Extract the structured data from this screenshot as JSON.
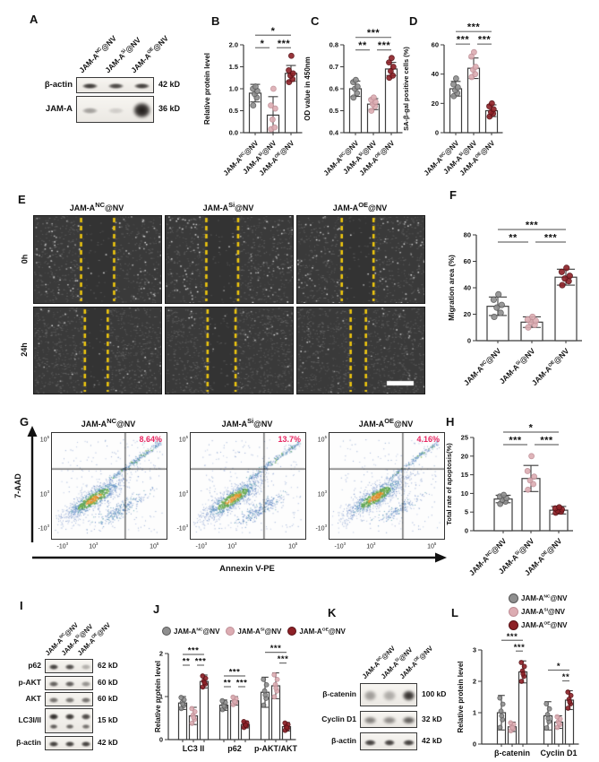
{
  "groups": [
    {
      "prefix": "JAM-A",
      "sup": "NC",
      "suffix": "@NV",
      "fill": "#8f8f8f",
      "stroke": "#565656"
    },
    {
      "prefix": "JAM-A",
      "sup": "Si",
      "suffix": "@NV",
      "fill": "#dcacb2",
      "stroke": "#bf8e96"
    },
    {
      "prefix": "JAM-A",
      "sup": "OE",
      "suffix": "@NV",
      "fill": "#8d2026",
      "stroke": "#571015"
    }
  ],
  "panels": {
    "A": {
      "label": "A",
      "rows": [
        {
          "name": "β-actin",
          "kd": "42 kD",
          "intensities": [
            0.88,
            0.82,
            0.86
          ]
        },
        {
          "name": "JAM-A",
          "kd": "36 kD",
          "intensities": [
            0.38,
            0.16,
            1.0
          ]
        }
      ]
    },
    "B": {
      "label": "B"
    },
    "C": {
      "label": "C"
    },
    "D": {
      "label": "D"
    },
    "E": {
      "label": "E",
      "row_labels": [
        "0h",
        "24h"
      ],
      "line_color": "#eec60e",
      "gaps": [
        [
          [
            0.37,
            0.63
          ],
          [
            0.32,
            0.57
          ],
          [
            0.35,
            0.6
          ]
        ],
        [
          [
            0.4,
            0.58
          ],
          [
            0.33,
            0.55
          ],
          [
            0.42,
            0.54
          ]
        ]
      ]
    },
    "F": {
      "label": "F"
    },
    "G": {
      "label": "G",
      "ylabel": "7-AAD",
      "xlabel": "Annexin V-PE",
      "yticks": [
        "10^5",
        "10^3",
        "-10^3"
      ],
      "xticks": [
        "-10^3",
        "10^3",
        "10^5"
      ],
      "percent_color": "#e82762",
      "plots": [
        {
          "group": 0,
          "percent": "8.64%"
        },
        {
          "group": 1,
          "percent": "13.7%"
        },
        {
          "group": 2,
          "percent": "4.16%"
        }
      ]
    },
    "H": {
      "label": "H"
    },
    "I": {
      "label": "I",
      "rows": [
        {
          "name": "p62",
          "kd": "62 kD",
          "intensities": [
            0.85,
            0.8,
            0.3
          ]
        },
        {
          "name": "p-AKT",
          "kd": "60 kD",
          "intensities": [
            0.7,
            0.72,
            0.45
          ]
        },
        {
          "name": "AKT",
          "kd": "60 kD",
          "intensities": [
            0.62,
            0.6,
            0.62
          ]
        },
        {
          "name": "LC3I/II",
          "kd": "15 kD",
          "intensities": [
            0.95,
            0.9,
            0.82
          ],
          "double": true
        },
        {
          "name": "β-actin",
          "kd": "42 kD",
          "intensities": [
            0.86,
            0.86,
            0.86
          ]
        }
      ]
    },
    "J": {
      "label": "J"
    },
    "K": {
      "label": "K",
      "rows": [
        {
          "name": "β-catenin",
          "kd": "100 kD",
          "intensities": [
            0.4,
            0.33,
            0.92
          ],
          "smudge": true
        },
        {
          "name": "Cyclin D1",
          "kd": "32 kD",
          "intensities": [
            0.55,
            0.5,
            0.72
          ],
          "smudge": true
        },
        {
          "name": "β-actin",
          "kd": "42 kD",
          "intensities": [
            0.85,
            0.85,
            0.85
          ]
        }
      ]
    },
    "L": {
      "label": "L"
    }
  },
  "chart_data": [
    {
      "id": "B",
      "type": "bar",
      "ylabel": "Relative protein level",
      "ylim": [
        0,
        2
      ],
      "yticks": [
        0,
        0.5,
        1,
        1.5,
        2
      ],
      "ytick_decimals": 1,
      "values": [
        0.9,
        0.4,
        1.35
      ],
      "errors": [
        0.2,
        0.42,
        0.18
      ],
      "n_points": 6,
      "points": [
        [
          0.62,
          0.8,
          0.88,
          0.95,
          1.0,
          1.05
        ],
        [
          0.08,
          0.12,
          0.3,
          0.55,
          0.62,
          1.0
        ],
        [
          1.15,
          1.22,
          1.3,
          1.35,
          1.42,
          1.75
        ]
      ],
      "sig": [
        {
          "from": 0,
          "to": 2,
          "row": 0,
          "label": "*"
        },
        {
          "from": 0,
          "to": 1,
          "row": 1,
          "label": "*"
        },
        {
          "from": 1,
          "to": 2,
          "row": 1,
          "label": "***"
        }
      ]
    },
    {
      "id": "C",
      "type": "bar",
      "ylabel": "OD value in 450nm",
      "ylim": [
        0.4,
        0.8
      ],
      "yticks": [
        0.4,
        0.5,
        0.6,
        0.7,
        0.8
      ],
      "ytick_decimals": 1,
      "values": [
        0.6,
        0.53,
        0.69
      ],
      "errors": [
        0.035,
        0.025,
        0.03
      ],
      "n_points": 6,
      "points": [
        [
          0.56,
          0.58,
          0.6,
          0.61,
          0.63,
          0.64
        ],
        [
          0.5,
          0.52,
          0.53,
          0.54,
          0.55,
          0.56
        ],
        [
          0.65,
          0.66,
          0.68,
          0.7,
          0.72,
          0.74
        ]
      ],
      "sig": [
        {
          "from": 0,
          "to": 2,
          "row": 0,
          "label": "***"
        },
        {
          "from": 0,
          "to": 1,
          "row": 1,
          "label": "**"
        },
        {
          "from": 1,
          "to": 2,
          "row": 1,
          "label": "***"
        }
      ]
    },
    {
      "id": "D",
      "type": "bar",
      "ylabel": "SA-β-gal positive cells (%)",
      "ylim": [
        0,
        60
      ],
      "yticks": [
        0,
        20,
        40,
        60
      ],
      "ytick_decimals": 0,
      "values": [
        30,
        44,
        15
      ],
      "errors": [
        5,
        7,
        4
      ],
      "n_points": 6,
      "points": [
        [
          25,
          27,
          29,
          31,
          33,
          37
        ],
        [
          38,
          40,
          43,
          45,
          52,
          55
        ],
        [
          11,
          13,
          14,
          16,
          18,
          20
        ]
      ],
      "sig": [
        {
          "from": 0,
          "to": 2,
          "row": 0,
          "label": "***"
        },
        {
          "from": 0,
          "to": 1,
          "row": 1,
          "label": "***"
        },
        {
          "from": 1,
          "to": 2,
          "row": 1,
          "label": "***"
        }
      ]
    },
    {
      "id": "F",
      "type": "bar",
      "ylabel": "Migration area (%)",
      "ylim": [
        0,
        80
      ],
      "yticks": [
        0,
        20,
        40,
        60,
        80
      ],
      "ytick_decimals": 0,
      "values": [
        26,
        14,
        48
      ],
      "errors": [
        7,
        4,
        6
      ],
      "n_points": 6,
      "points": [
        [
          18,
          21,
          25,
          27,
          31,
          35
        ],
        [
          10,
          12,
          14,
          15,
          16,
          18
        ],
        [
          42,
          45,
          47,
          49,
          52,
          55
        ]
      ],
      "sig": [
        {
          "from": 0,
          "to": 2,
          "row": 0,
          "label": "***"
        },
        {
          "from": 0,
          "to": 1,
          "row": 1,
          "label": "**"
        },
        {
          "from": 1,
          "to": 2,
          "row": 1,
          "label": "***"
        }
      ]
    },
    {
      "id": "H",
      "type": "bar",
      "ylabel": "Total rate of apoptosis(%)",
      "ylim": [
        0,
        25
      ],
      "yticks": [
        0,
        5,
        10,
        15,
        20,
        25
      ],
      "ytick_decimals": 0,
      "values": [
        8.5,
        14,
        5.5
      ],
      "errors": [
        1,
        3.5,
        1
      ],
      "n_points": 6,
      "points": [
        [
          7.2,
          7.8,
          8.3,
          8.7,
          9.2,
          9.6
        ],
        [
          11,
          12.5,
          13.5,
          14.5,
          16,
          20
        ],
        [
          4.8,
          5.1,
          5.4,
          5.7,
          6,
          6.3
        ]
      ],
      "sig": [
        {
          "from": 0,
          "to": 2,
          "row": 0,
          "label": "*"
        },
        {
          "from": 0,
          "to": 1,
          "row": 1,
          "label": "***"
        },
        {
          "from": 1,
          "to": 2,
          "row": 1,
          "label": "***"
        }
      ]
    },
    {
      "id": "J",
      "type": "grouped-bar",
      "ylabel": "Relative protein level",
      "ylim": [
        0,
        2
      ],
      "yticks": [
        0,
        1,
        2
      ],
      "ytick_decimals": 0,
      "categories": [
        "LC3 II",
        "p62",
        "p-AKT/AKT"
      ],
      "n_points": 6,
      "series": [
        {
          "group": 0,
          "values": [
            0.85,
            0.8,
            1.1
          ],
          "errors": [
            0.15,
            0.12,
            0.35
          ]
        },
        {
          "group": 1,
          "values": [
            0.55,
            0.9,
            1.25
          ],
          "errors": [
            0.2,
            0.1,
            0.3
          ]
        },
        {
          "group": 2,
          "values": [
            1.35,
            0.35,
            0.3
          ],
          "errors": [
            0.15,
            0.08,
            0.1
          ]
        }
      ],
      "sig": [
        {
          "cat": 0,
          "from": 0,
          "to": 2,
          "row": 0,
          "label": "***"
        },
        {
          "cat": 0,
          "from": 0,
          "to": 1,
          "row": 1,
          "label": "**"
        },
        {
          "cat": 0,
          "from": 1,
          "to": 2,
          "row": 1,
          "label": "***"
        },
        {
          "cat": 1,
          "from": 0,
          "to": 2,
          "row": 0,
          "label": "***"
        },
        {
          "cat": 1,
          "from": 0,
          "to": 1,
          "row": 1,
          "label": "**"
        },
        {
          "cat": 1,
          "from": 1,
          "to": 2,
          "row": 1,
          "label": "***"
        },
        {
          "cat": 2,
          "from": 0,
          "to": 2,
          "row": 0,
          "label": "***"
        },
        {
          "cat": 2,
          "from": 1,
          "to": 2,
          "row": 1,
          "label": "***"
        }
      ]
    },
    {
      "id": "L",
      "type": "grouped-bar",
      "ylabel": "Relative protein level",
      "ylim": [
        0,
        3
      ],
      "yticks": [
        0,
        1,
        2,
        3
      ],
      "ytick_decimals": 0,
      "categories": [
        "β-catenin",
        "Cyclin D1"
      ],
      "n_points": 6,
      "series": [
        {
          "group": 0,
          "values": [
            1.0,
            0.9
          ],
          "errors": [
            0.55,
            0.45
          ]
        },
        {
          "group": 1,
          "values": [
            0.55,
            0.7
          ],
          "errors": [
            0.15,
            0.2
          ]
        },
        {
          "group": 2,
          "values": [
            2.3,
            1.4
          ],
          "errors": [
            0.35,
            0.3
          ]
        }
      ],
      "sig": [
        {
          "cat": 0,
          "from": 0,
          "to": 2,
          "row": 0,
          "label": "***"
        },
        {
          "cat": 0,
          "from": 1,
          "to": 2,
          "row": 1,
          "label": "***"
        },
        {
          "cat": 1,
          "from": 0,
          "to": 2,
          "row": 0,
          "label": "*"
        },
        {
          "cat": 1,
          "from": 1,
          "to": 2,
          "row": 1,
          "label": "**"
        }
      ]
    }
  ]
}
